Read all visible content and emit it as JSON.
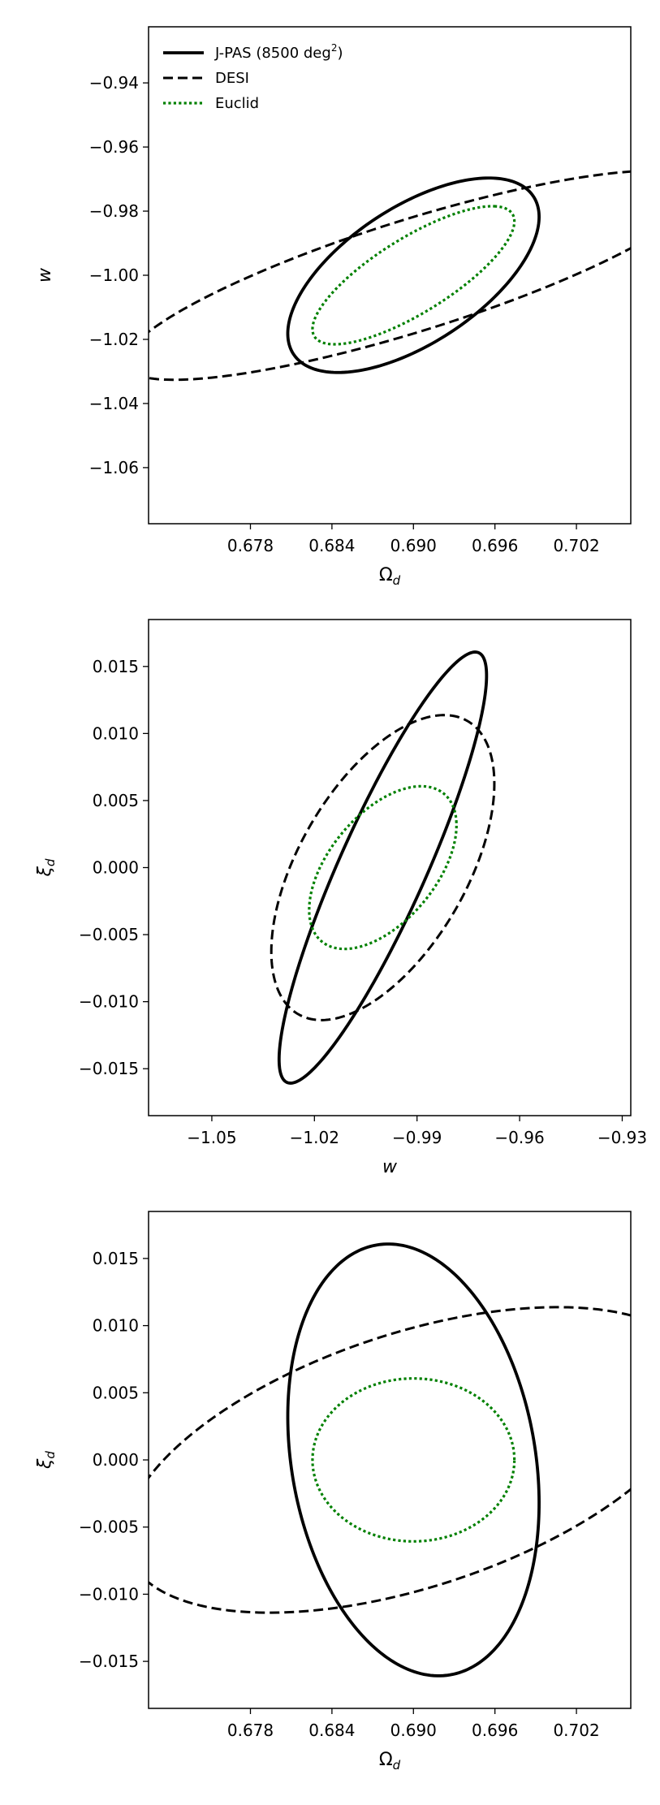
{
  "chart_data": [
    {
      "type": "contour",
      "xlabel": "Ωd",
      "ylabel": "w",
      "xlim": [
        0.6705,
        0.706
      ],
      "ylim": [
        -1.0775,
        -0.9225
      ],
      "xticks": [
        0.678,
        0.684,
        0.69,
        0.696,
        0.702
      ],
      "xtick_labels": [
        "0.678",
        "0.684",
        "0.690",
        "0.696",
        "0.702"
      ],
      "yticks": [
        -0.94,
        -0.96,
        -0.98,
        -1.0,
        -1.02,
        -1.04,
        -1.06
      ],
      "ytick_labels": [
        "−0.94",
        "−0.96",
        "−0.98",
        "−1.00",
        "−1.02",
        "−1.04",
        "−1.06"
      ],
      "legend": {
        "position": "upper-left",
        "entries": [
          {
            "label": "J-PAS (8500 deg",
            "sup": "2",
            "suffix": ")",
            "style": "solid",
            "color": "#000000"
          },
          {
            "label": "DESI",
            "style": "dashed",
            "color": "#000000"
          },
          {
            "label": "Euclid",
            "style": "dotted",
            "color": "#008000"
          }
        ]
      },
      "series": [
        {
          "name": "J-PAS (8500 deg2)",
          "style": "solid",
          "color": "#000000",
          "center": [
            0.69,
            -1.0
          ],
          "sigma": [
            0.0061,
            0.02
          ],
          "rho": 0.6
        },
        {
          "name": "DESI",
          "style": "dashed",
          "color": "#000000",
          "center": [
            0.69,
            -1.0
          ],
          "sigma": [
            0.014,
            0.0215
          ],
          "rho": 0.83
        },
        {
          "name": "Euclid",
          "style": "dotted",
          "color": "#008000",
          "center": [
            0.69,
            -1.0
          ],
          "sigma": [
            0.0049,
            0.0142
          ],
          "rho": 0.78
        }
      ]
    },
    {
      "type": "contour",
      "xlabel": "w",
      "ylabel": "ξd",
      "xlim": [
        -1.0685,
        -0.9275
      ],
      "ylim": [
        -0.0185,
        0.0185
      ],
      "xticks": [
        -1.05,
        -1.02,
        -0.99,
        -0.96,
        -0.93
      ],
      "xtick_labels": [
        "−1.05",
        "−1.02",
        "−0.99",
        "−0.96",
        "−0.93"
      ],
      "yticks": [
        0.015,
        0.01,
        0.005,
        0.0,
        -0.005,
        -0.01,
        -0.015
      ],
      "ytick_labels": [
        "0.015",
        "0.010",
        "0.005",
        "0.000",
        "−0.005",
        "−0.010",
        "−0.015"
      ],
      "series": [
        {
          "name": "J-PAS (8500 deg2)",
          "style": "solid",
          "color": "#000000",
          "center": [
            -1.0,
            0.0
          ],
          "sigma": [
            0.02,
            0.0106
          ],
          "rho": 0.89
        },
        {
          "name": "DESI",
          "style": "dashed",
          "color": "#000000",
          "center": [
            -1.0,
            0.0
          ],
          "sigma": [
            0.0215,
            0.0075
          ],
          "rho": 0.55
        },
        {
          "name": "Euclid",
          "style": "dotted",
          "color": "#008000",
          "center": [
            -1.0,
            0.0
          ],
          "sigma": [
            0.0142,
            0.004
          ],
          "rho": 0.52
        }
      ]
    },
    {
      "type": "contour",
      "xlabel": "Ωd",
      "ylabel": "ξd",
      "xlim": [
        0.6705,
        0.706
      ],
      "ylim": [
        -0.0185,
        0.0185
      ],
      "xticks": [
        0.678,
        0.684,
        0.69,
        0.696,
        0.702
      ],
      "xtick_labels": [
        "0.678",
        "0.684",
        "0.690",
        "0.696",
        "0.702"
      ],
      "yticks": [
        0.015,
        0.01,
        0.005,
        0.0,
        -0.005,
        -0.01,
        -0.015
      ],
      "ytick_labels": [
        "0.015",
        "0.010",
        "0.005",
        "0.000",
        "−0.005",
        "−0.010",
        "−0.015"
      ],
      "series": [
        {
          "name": "J-PAS (8500 deg2)",
          "style": "solid",
          "color": "#000000",
          "center": [
            0.69,
            0.0
          ],
          "sigma": [
            0.0061,
            0.0106
          ],
          "rho": -0.2
        },
        {
          "name": "DESI",
          "style": "dashed",
          "color": "#000000",
          "center": [
            0.69,
            0.0
          ],
          "sigma": [
            0.014,
            0.0075
          ],
          "rho": 0.5
        },
        {
          "name": "Euclid",
          "style": "dotted",
          "color": "#008000",
          "center": [
            0.69,
            0.0
          ],
          "sigma": [
            0.0049,
            0.004
          ],
          "rho": 0.0
        }
      ]
    }
  ]
}
